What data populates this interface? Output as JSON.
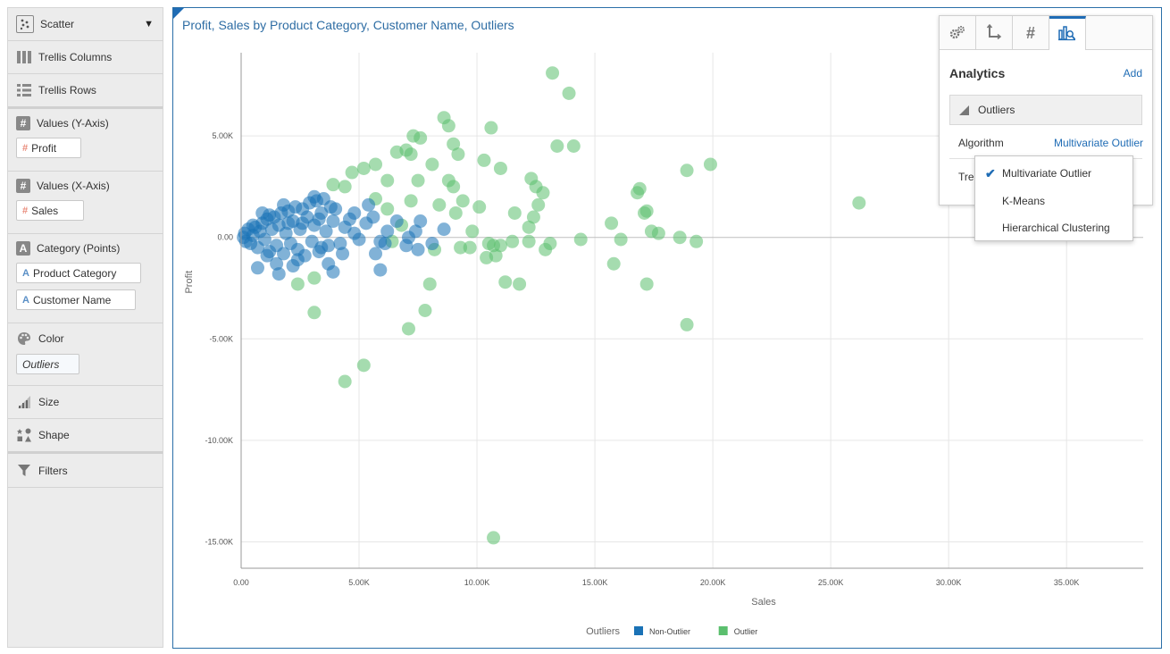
{
  "panel": {
    "viz_type": "Scatter",
    "trellis_columns": "Trellis Columns",
    "trellis_rows": "Trellis Rows",
    "values_y": {
      "label": "Values (Y-Axis)",
      "pill": "Profit"
    },
    "values_x": {
      "label": "Values (X-Axis)",
      "pill": "Sales"
    },
    "category": {
      "label": "Category (Points)",
      "pills": [
        "Product Category",
        "Customer Name"
      ]
    },
    "color": {
      "label": "Color",
      "pill": "Outliers"
    },
    "size": "Size",
    "shape": "Shape",
    "filters": "Filters"
  },
  "chart_title": "Profit, Sales by Product Category, Customer Name, Outliers",
  "properties": {
    "tabs": [
      "gear-icon",
      "axis-icon",
      "number-format-icon",
      "analytics-icon"
    ],
    "heading": "Analytics",
    "add_label": "Add",
    "section": "Outliers",
    "algorithm_label": "Algorithm",
    "algorithm_value": "Multivariate Outlier",
    "truncated_label": "Tre"
  },
  "dropdown": {
    "options": [
      "Multivariate Outlier",
      "K-Means",
      "Hierarchical Clustering"
    ],
    "selected": "Multivariate Outlier"
  },
  "chart_data": {
    "type": "scatter",
    "title": "Profit, Sales by Product Category, Customer Name, Outliers",
    "xlabel": "Sales",
    "ylabel": "Profit",
    "xlim": [
      0,
      38250
    ],
    "ylim": [
      -16300,
      9100
    ],
    "x_ticks": [
      "0.00",
      "5.00K",
      "10.00K",
      "15.00K",
      "20.00K",
      "25.00K",
      "30.00K",
      "35.00K"
    ],
    "y_ticks": [
      "5.00K",
      "0.00",
      "-5.00K",
      "-10.00K",
      "-15.00K"
    ],
    "legend_title": "Outliers",
    "legend_position": "bottom",
    "series": [
      {
        "name": "Non-Outlier",
        "color": "#1a72b6",
        "points": [
          [
            100,
            0
          ],
          [
            150,
            200
          ],
          [
            200,
            -200
          ],
          [
            300,
            400
          ],
          [
            400,
            -300
          ],
          [
            500,
            100
          ],
          [
            600,
            500
          ],
          [
            700,
            -500
          ],
          [
            800,
            300
          ],
          [
            900,
            700
          ],
          [
            1000,
            -100
          ],
          [
            1100,
            900
          ],
          [
            1200,
            -700
          ],
          [
            1300,
            400
          ],
          [
            1400,
            1000
          ],
          [
            1500,
            -400
          ],
          [
            1600,
            600
          ],
          [
            1700,
            1200
          ],
          [
            1800,
            -800
          ],
          [
            1900,
            200
          ],
          [
            2000,
            1300
          ],
          [
            2100,
            -300
          ],
          [
            2200,
            800
          ],
          [
            2300,
            1500
          ],
          [
            2400,
            -600
          ],
          [
            2500,
            400
          ],
          [
            2600,
            1400
          ],
          [
            2700,
            -900
          ],
          [
            2800,
            1000
          ],
          [
            2900,
            1700
          ],
          [
            3000,
            -200
          ],
          [
            3100,
            600
          ],
          [
            3200,
            1800
          ],
          [
            3300,
            -700
          ],
          [
            3400,
            1200
          ],
          [
            3500,
            1900
          ],
          [
            3600,
            300
          ],
          [
            3700,
            -400
          ],
          [
            3800,
            1500
          ],
          [
            3900,
            800
          ],
          [
            4000,
            1400
          ],
          [
            4200,
            -300
          ],
          [
            4400,
            500
          ],
          [
            4600,
            900
          ],
          [
            4800,
            200
          ],
          [
            5000,
            -100
          ],
          [
            5300,
            700
          ],
          [
            5600,
            1000
          ],
          [
            5900,
            -200
          ],
          [
            6200,
            300
          ],
          [
            6600,
            800
          ],
          [
            7000,
            -400
          ],
          [
            7400,
            300
          ],
          [
            3100,
            2000
          ],
          [
            3300,
            900
          ],
          [
            2600,
            700
          ],
          [
            1800,
            1600
          ],
          [
            2400,
            -1100
          ],
          [
            1500,
            -1300
          ],
          [
            1100,
            -900
          ],
          [
            700,
            -1500
          ],
          [
            5700,
            -800
          ],
          [
            6100,
            -300
          ],
          [
            4300,
            -800
          ],
          [
            3700,
            -1300
          ],
          [
            3900,
            -1700
          ],
          [
            5900,
            -1600
          ],
          [
            7100,
            0
          ],
          [
            7500,
            -600
          ],
          [
            8100,
            -300
          ],
          [
            8600,
            400
          ],
          [
            7600,
            800
          ],
          [
            5400,
            1600
          ],
          [
            4800,
            1200
          ],
          [
            2200,
            -1400
          ],
          [
            1600,
            -1800
          ],
          [
            900,
            1200
          ],
          [
            500,
            600
          ],
          [
            1200,
            1100
          ],
          [
            2000,
            700
          ],
          [
            3400,
            -500
          ]
        ]
      },
      {
        "name": "Outlier",
        "color": "#5bbf6e",
        "points": [
          [
            13200,
            8100
          ],
          [
            13900,
            7100
          ],
          [
            8600,
            5900
          ],
          [
            8800,
            5500
          ],
          [
            10600,
            5400
          ],
          [
            7300,
            5000
          ],
          [
            7600,
            4900
          ],
          [
            9000,
            4600
          ],
          [
            13400,
            4500
          ],
          [
            14100,
            4500
          ],
          [
            7000,
            4300
          ],
          [
            6600,
            4200
          ],
          [
            7200,
            4100
          ],
          [
            9200,
            4100
          ],
          [
            10300,
            3800
          ],
          [
            8100,
            3600
          ],
          [
            5700,
            3600
          ],
          [
            11000,
            3400
          ],
          [
            5200,
            3400
          ],
          [
            4700,
            3200
          ],
          [
            18900,
            3300
          ],
          [
            19900,
            3600
          ],
          [
            12300,
            2900
          ],
          [
            6200,
            2800
          ],
          [
            8800,
            2800
          ],
          [
            7500,
            2800
          ],
          [
            4400,
            2500
          ],
          [
            3900,
            2600
          ],
          [
            9000,
            2500
          ],
          [
            12500,
            2500
          ],
          [
            16900,
            2400
          ],
          [
            16800,
            2200
          ],
          [
            12800,
            2200
          ],
          [
            5700,
            1900
          ],
          [
            7200,
            1800
          ],
          [
            9400,
            1800
          ],
          [
            26200,
            1700
          ],
          [
            12600,
            1600
          ],
          [
            8400,
            1600
          ],
          [
            10100,
            1500
          ],
          [
            6200,
            1400
          ],
          [
            9100,
            1200
          ],
          [
            11600,
            1200
          ],
          [
            17100,
            1200
          ],
          [
            17200,
            1300
          ],
          [
            12400,
            1000
          ],
          [
            15700,
            700
          ],
          [
            12200,
            500
          ],
          [
            17400,
            300
          ],
          [
            17700,
            200
          ],
          [
            18600,
            0
          ],
          [
            16100,
            -100
          ],
          [
            14400,
            -100
          ],
          [
            12200,
            -200
          ],
          [
            11500,
            -200
          ],
          [
            10500,
            -300
          ],
          [
            10700,
            -400
          ],
          [
            13100,
            -300
          ],
          [
            19300,
            -200
          ],
          [
            9700,
            -500
          ],
          [
            11000,
            -400
          ],
          [
            8200,
            -600
          ],
          [
            10800,
            -900
          ],
          [
            10400,
            -1000
          ],
          [
            12900,
            -600
          ],
          [
            15800,
            -1300
          ],
          [
            11200,
            -2200
          ],
          [
            11800,
            -2300
          ],
          [
            8000,
            -2300
          ],
          [
            17200,
            -2300
          ],
          [
            3100,
            -2000
          ],
          [
            2400,
            -2300
          ],
          [
            7800,
            -3600
          ],
          [
            3100,
            -3700
          ],
          [
            7100,
            -4500
          ],
          [
            18900,
            -4300
          ],
          [
            5200,
            -6300
          ],
          [
            4400,
            -7100
          ],
          [
            10700,
            -14800
          ],
          [
            9800,
            300
          ],
          [
            9300,
            -500
          ],
          [
            6800,
            600
          ],
          [
            6400,
            -200
          ]
        ]
      }
    ]
  }
}
